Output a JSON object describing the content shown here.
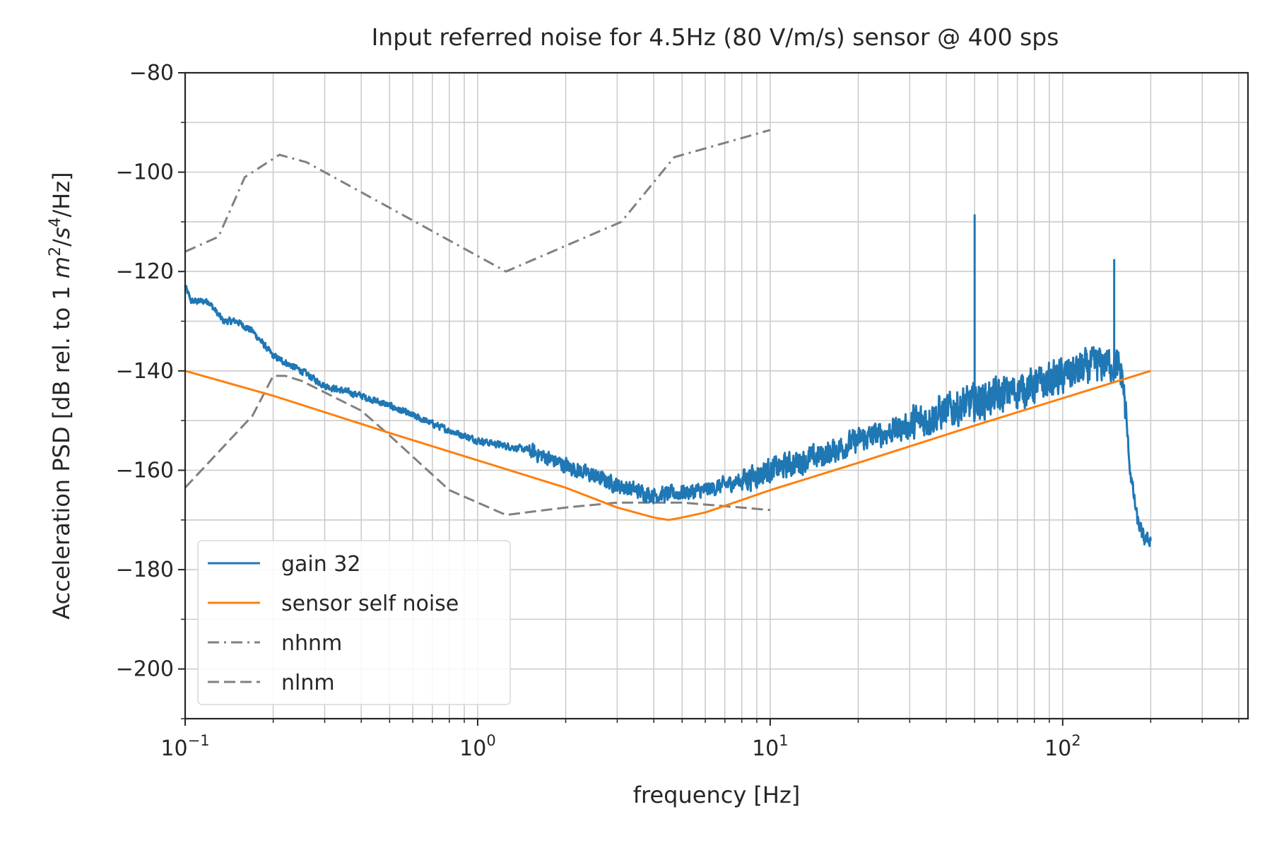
{
  "chart_data": {
    "type": "line",
    "title": "Input referred noise for 4.5Hz (80 V/m/s) sensor @ 400 sps",
    "xlabel": "frequency [Hz]",
    "ylabel": "Acceleration PSD [dB rel. to 1 m²/s⁴/Hz]",
    "ylabel_parts": {
      "pre": "Acceleration PSD [dB rel. to 1 ",
      "m": "m",
      "exp2": "2",
      "slash": "/",
      "s": "s",
      "exp4": "4",
      "post": "/Hz]"
    },
    "x_scale": "log",
    "xlim": [
      0.1,
      430
    ],
    "ylim": [
      -210,
      -80
    ],
    "grid": true,
    "legend_position": "lower-left",
    "x_ticks": [
      {
        "value": 0.1,
        "base": "10",
        "exp": "−1"
      },
      {
        "value": 1,
        "base": "10",
        "exp": "0"
      },
      {
        "value": 10,
        "base": "10",
        "exp": "1"
      },
      {
        "value": 100,
        "base": "10",
        "exp": "2"
      }
    ],
    "y_ticks": [
      {
        "value": -80,
        "label": "−80"
      },
      {
        "value": -100,
        "label": "−100"
      },
      {
        "value": -120,
        "label": "−120"
      },
      {
        "value": -140,
        "label": "−140"
      },
      {
        "value": -160,
        "label": "−160"
      },
      {
        "value": -180,
        "label": "−180"
      },
      {
        "value": -200,
        "label": "−200"
      }
    ],
    "series": [
      {
        "name": "gain 32",
        "color": "#1f77b4",
        "style": "solid",
        "noisy": true,
        "x": [
          0.1,
          0.105,
          0.12,
          0.135,
          0.15,
          0.17,
          0.2,
          0.25,
          0.3,
          0.4,
          0.5,
          0.6,
          0.8,
          1.0,
          1.5,
          2.0,
          3.0,
          4.0,
          5.0,
          6.0,
          8.0,
          10,
          15,
          20,
          30,
          40,
          60,
          80,
          100,
          120,
          140,
          150,
          160,
          165,
          170,
          180,
          190,
          200
        ],
        "y": [
          -123,
          -126,
          -126,
          -130,
          -130,
          -132,
          -137,
          -140,
          -143,
          -145,
          -147,
          -149,
          -152,
          -154,
          -156,
          -159,
          -163,
          -165,
          -164.5,
          -164,
          -162,
          -160,
          -157,
          -154,
          -151,
          -148,
          -145,
          -143,
          -141,
          -139.5,
          -138.5,
          -138.5,
          -141,
          -150,
          -160,
          -170,
          -174,
          -174
        ]
      },
      {
        "name": "sensor self noise",
        "color": "#ff7f0e",
        "style": "solid",
        "x": [
          0.1,
          0.2,
          0.5,
          1.0,
          2.0,
          3.0,
          4.0,
          4.5,
          5.0,
          6.0,
          8.0,
          10,
          20,
          50,
          100,
          200
        ],
        "y": [
          -140,
          -145,
          -152.5,
          -158,
          -163.5,
          -167.5,
          -169.5,
          -170,
          -169.5,
          -168.5,
          -166,
          -164,
          -158.5,
          -151,
          -145.5,
          -140
        ]
      },
      {
        "name": "nhnm",
        "color": "#808080",
        "style": "dashdot",
        "x": [
          0.1,
          0.13,
          0.16,
          0.21,
          0.26,
          1.25,
          3.1,
          4.7,
          10
        ],
        "y": [
          -116,
          -113,
          -101,
          -96.5,
          -98,
          -120,
          -110,
          -97,
          -91.5
        ]
      },
      {
        "name": "nlnm",
        "color": "#808080",
        "style": "dashed",
        "x": [
          0.1,
          0.17,
          0.2,
          0.22,
          0.25,
          0.4,
          0.5,
          0.8,
          1.25,
          2,
          3,
          5,
          10
        ],
        "y": [
          -163.5,
          -149,
          -141,
          -141,
          -142,
          -148,
          -153,
          -164,
          -169,
          -167.5,
          -166.5,
          -166.5,
          -168
        ]
      }
    ],
    "annotations": [
      {
        "type": "spike",
        "series": "gain 32",
        "x": 50,
        "y": -108.5
      },
      {
        "type": "spike",
        "series": "gain 32",
        "x": 150,
        "y": -117.5
      }
    ]
  }
}
